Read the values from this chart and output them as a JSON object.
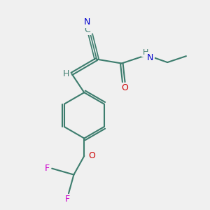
{
  "background_color": "#f0f0f0",
  "bond_color": "#3d7d6e",
  "atom_colors": {
    "N": "#0000cc",
    "O": "#cc0000",
    "F": "#cc00cc",
    "C": "#3d7d6e",
    "H": "#3d7d6e"
  },
  "figsize": [
    3.0,
    3.0
  ],
  "dpi": 100
}
